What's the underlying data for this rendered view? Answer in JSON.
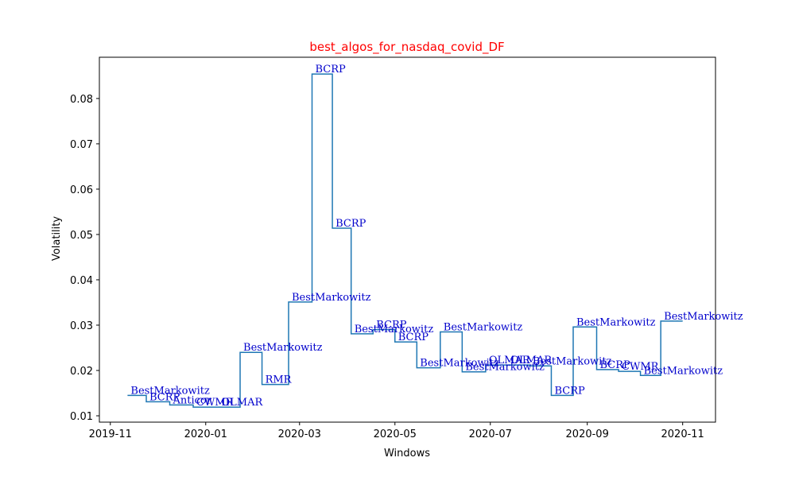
{
  "chart_data": {
    "type": "step",
    "title": "best_algos_for_nasdaq_covid_DF",
    "title_color": "red",
    "x_label": "Windows",
    "y_label": "Volatility",
    "series": [
      {
        "color": "#1f77b4",
        "x": [
          18212,
          18224,
          18239,
          18254,
          18270,
          18284,
          18298,
          18315,
          18330,
          18343,
          18355,
          18369,
          18383,
          18397,
          18412,
          18426,
          18441,
          18455,
          18469,
          18483,
          18497,
          18512,
          18526,
          18540,
          18553,
          18567
        ],
        "values": [
          0.0145,
          0.0131,
          0.0124,
          0.0119,
          0.0119,
          0.024,
          0.0169,
          0.0351,
          0.0854,
          0.0514,
          0.0281,
          0.029,
          0.0263,
          0.0206,
          0.0285,
          0.0197,
          0.0212,
          0.0212,
          0.021,
          0.0145,
          0.0296,
          0.0202,
          0.0198,
          0.0189,
          0.0309,
          0.0309
        ],
        "labels": [
          "BestMarkowitz",
          "BCRP",
          "Anticor",
          "CWMR",
          "OLMAR",
          "BestMarkowitz",
          "RMR",
          "BestMarkowitz",
          "BCRP",
          "BCRP",
          "BestMarkowitz",
          "BCRP",
          "BCRP",
          "BestMarkowitz",
          "BestMarkowitz",
          "BestMarkowitz",
          "OLMAR",
          "OLMAR",
          "BestMarkowitz",
          "BCRP",
          "BestMarkowitz",
          "BCRP",
          "CWMR",
          "BestMarkowitz",
          "BestMarkowitz",
          null
        ]
      }
    ],
    "label_color": "#0000cc",
    "xlim": [
      18194,
      18588
    ],
    "ylim": [
      0.0086,
      0.0891
    ],
    "xticks": [
      {
        "value": 18201,
        "label": "2019-11"
      },
      {
        "value": 18262,
        "label": "2020-01"
      },
      {
        "value": 18322,
        "label": "2020-03"
      },
      {
        "value": 18383,
        "label": "2020-05"
      },
      {
        "value": 18444,
        "label": "2020-07"
      },
      {
        "value": 18506,
        "label": "2020-09"
      },
      {
        "value": 18567,
        "label": "2020-11"
      }
    ],
    "yticks": [
      0.01,
      0.02,
      0.03,
      0.04,
      0.05,
      0.06,
      0.07,
      0.08
    ]
  }
}
